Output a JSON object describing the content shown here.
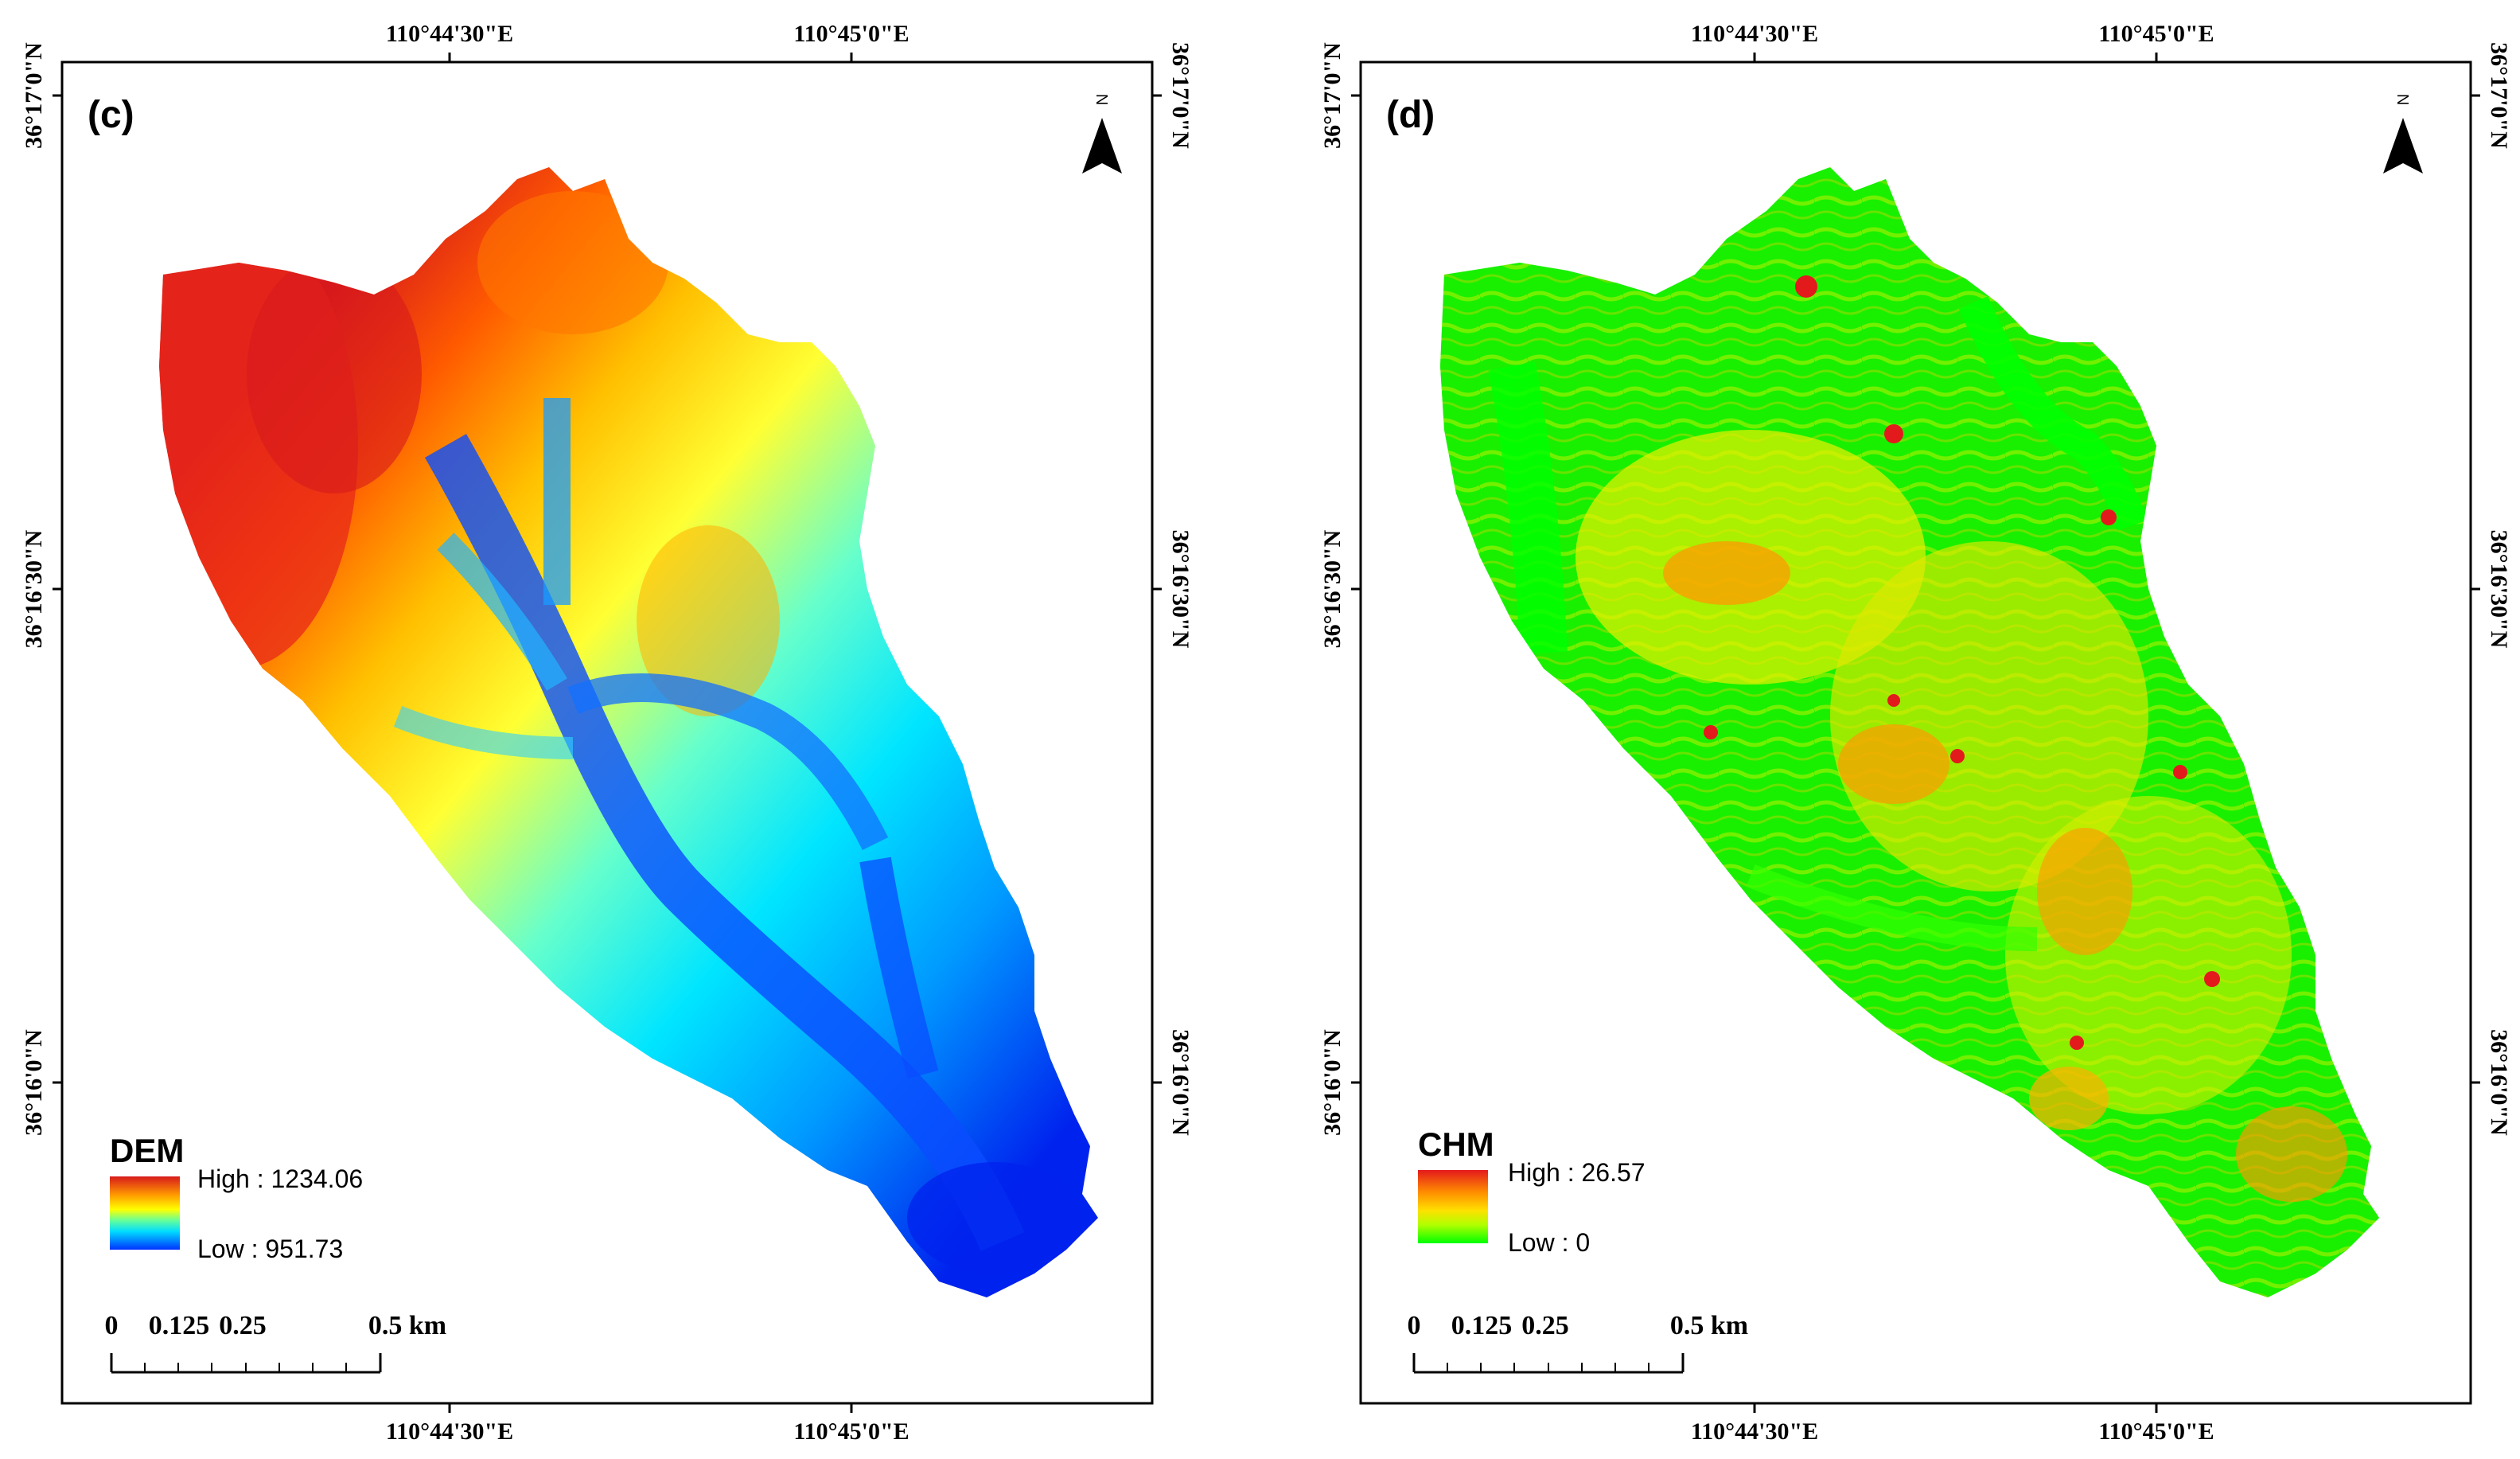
{
  "colors": {
    "dem_ramp": [
      "#d7191c",
      "#ff6600",
      "#ffcc00",
      "#ffff00",
      "#99ff33",
      "#00ffff",
      "#00aaff",
      "#0033ff"
    ],
    "chm_ramp": [
      "#e31a1c",
      "#ff8c00",
      "#ffd400",
      "#e6ff00",
      "#7cff00",
      "#00ff00"
    ],
    "frame": "#000000"
  },
  "panels": [
    {
      "label": "(c)",
      "lon_ticks": [
        "110°44'30\"E",
        "110°45'0\"E"
      ],
      "lat_ticks": [
        "36°17'0\"N",
        "36°16'30\"N",
        "36°16'0\"N"
      ],
      "north_letter": "N",
      "legend": {
        "title": "DEM",
        "high": "High : 1234.06",
        "low": "Low : 951.73"
      },
      "scale": {
        "labels": [
          "0",
          "0.125",
          "0.25",
          "0.5 km"
        ]
      }
    },
    {
      "label": "(d)",
      "lon_ticks": [
        "110°44'30\"E",
        "110°45'0\"E"
      ],
      "lat_ticks": [
        "36°17'0\"N",
        "36°16'30\"N",
        "36°16'0\"N"
      ],
      "north_letter": "N",
      "legend": {
        "title": "CHM",
        "high": "High : 26.57",
        "low": "Low : 0"
      },
      "scale": {
        "labels": [
          "0",
          "0.125",
          "0.25",
          "0.5 km"
        ]
      }
    }
  ]
}
